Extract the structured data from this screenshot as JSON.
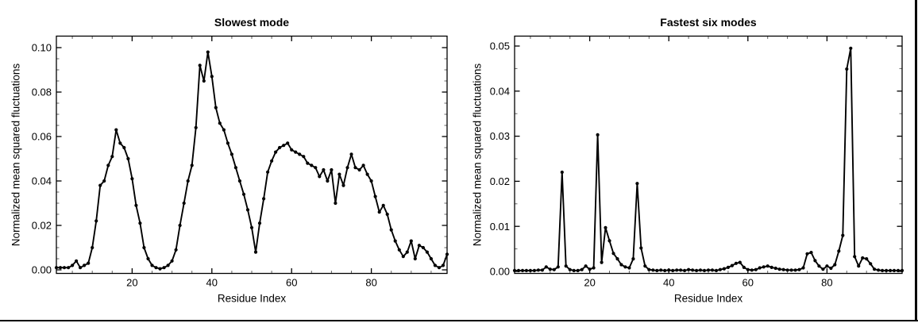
{
  "page": {
    "background": "#ffffff",
    "border_color": "#000000"
  },
  "chart_data": [
    {
      "type": "line",
      "title": "Slowest mode",
      "xlabel": "Residue Index",
      "ylabel": "Normalized mean squared fluctuations",
      "legend": null,
      "grid": false,
      "marker": "filled-circle",
      "line_color": "#000000",
      "x_start": 1,
      "x_step": 1,
      "xlim": [
        1,
        99
      ],
      "ylim": [
        0,
        0.1
      ],
      "xticks": {
        "values": [
          20,
          40,
          60,
          80
        ],
        "labels": [
          "20",
          "40",
          "60",
          "80"
        ]
      },
      "yticks": {
        "values": [
          0,
          0.02,
          0.04,
          0.06,
          0.08,
          0.1
        ],
        "labels": [
          "0.00",
          "0.02",
          "0.04",
          "0.06",
          "0.08",
          "0.10"
        ]
      },
      "x_minor_step": 5,
      "y_minor_step": 0.005,
      "values": [
        0.001,
        0.001,
        0.001,
        0.001,
        0.002,
        0.004,
        0.001,
        0.002,
        0.003,
        0.01,
        0.022,
        0.038,
        0.04,
        0.047,
        0.051,
        0.063,
        0.057,
        0.055,
        0.05,
        0.041,
        0.029,
        0.021,
        0.01,
        0.005,
        0.002,
        0.001,
        0.0005,
        0.001,
        0.002,
        0.004,
        0.009,
        0.02,
        0.03,
        0.04,
        0.047,
        0.064,
        0.092,
        0.085,
        0.098,
        0.087,
        0.073,
        0.066,
        0.063,
        0.057,
        0.052,
        0.046,
        0.04,
        0.034,
        0.027,
        0.019,
        0.008,
        0.021,
        0.032,
        0.044,
        0.049,
        0.053,
        0.055,
        0.056,
        0.057,
        0.054,
        0.053,
        0.052,
        0.051,
        0.048,
        0.047,
        0.046,
        0.042,
        0.045,
        0.04,
        0.045,
        0.03,
        0.043,
        0.038,
        0.046,
        0.052,
        0.046,
        0.045,
        0.047,
        0.043,
        0.04,
        0.033,
        0.026,
        0.029,
        0.025,
        0.018,
        0.013,
        0.009,
        0.006,
        0.008,
        0.013,
        0.005,
        0.011,
        0.01,
        0.008,
        0.005,
        0.002,
        0.001,
        0.002,
        0.007
      ]
    },
    {
      "type": "line",
      "title": "Fastest six modes",
      "xlabel": "Residue Index",
      "ylabel": "Normalized mean squared fluctuations",
      "legend": null,
      "grid": false,
      "marker": "filled-circle",
      "line_color": "#000000",
      "x_start": 1,
      "x_step": 1,
      "xlim": [
        1,
        99
      ],
      "ylim": [
        0,
        0.05
      ],
      "xticks": {
        "values": [
          20,
          40,
          60,
          80
        ],
        "labels": [
          "20",
          "40",
          "60",
          "80"
        ]
      },
      "yticks": {
        "values": [
          0,
          0.01,
          0.02,
          0.03,
          0.04,
          0.05
        ],
        "labels": [
          "0.00",
          "0.01",
          "0.02",
          "0.03",
          "0.04",
          "0.05"
        ]
      },
      "x_minor_step": 5,
      "y_minor_step": 0.005,
      "values": [
        0.0002,
        0.0002,
        0.0002,
        0.0002,
        0.0002,
        0.0002,
        0.0003,
        0.0003,
        0.001,
        0.0005,
        0.0004,
        0.001,
        0.022,
        0.0012,
        0.0004,
        0.0002,
        0.0002,
        0.0004,
        0.0012,
        0.0005,
        0.0008,
        0.0303,
        0.002,
        0.0097,
        0.0068,
        0.004,
        0.0028,
        0.0015,
        0.001,
        0.0008,
        0.0028,
        0.0195,
        0.0052,
        0.0012,
        0.0004,
        0.0003,
        0.0002,
        0.0003,
        0.0002,
        0.0003,
        0.0002,
        0.0003,
        0.0003,
        0.0002,
        0.0004,
        0.0003,
        0.0002,
        0.0003,
        0.0002,
        0.0003,
        0.0003,
        0.0002,
        0.0004,
        0.0006,
        0.0009,
        0.0013,
        0.0018,
        0.002,
        0.0009,
        0.0004,
        0.0003,
        0.0004,
        0.0008,
        0.001,
        0.0012,
        0.0009,
        0.0007,
        0.0005,
        0.0004,
        0.0003,
        0.0003,
        0.0003,
        0.0004,
        0.0008,
        0.0039,
        0.0042,
        0.0024,
        0.0012,
        0.0005,
        0.0012,
        0.0007,
        0.0015,
        0.0045,
        0.008,
        0.0449,
        0.0495,
        0.0033,
        0.0012,
        0.003,
        0.0028,
        0.0017,
        0.0005,
        0.0003,
        0.0002,
        0.0002,
        0.0002,
        0.0002,
        0.0002,
        0.0002
      ]
    }
  ]
}
